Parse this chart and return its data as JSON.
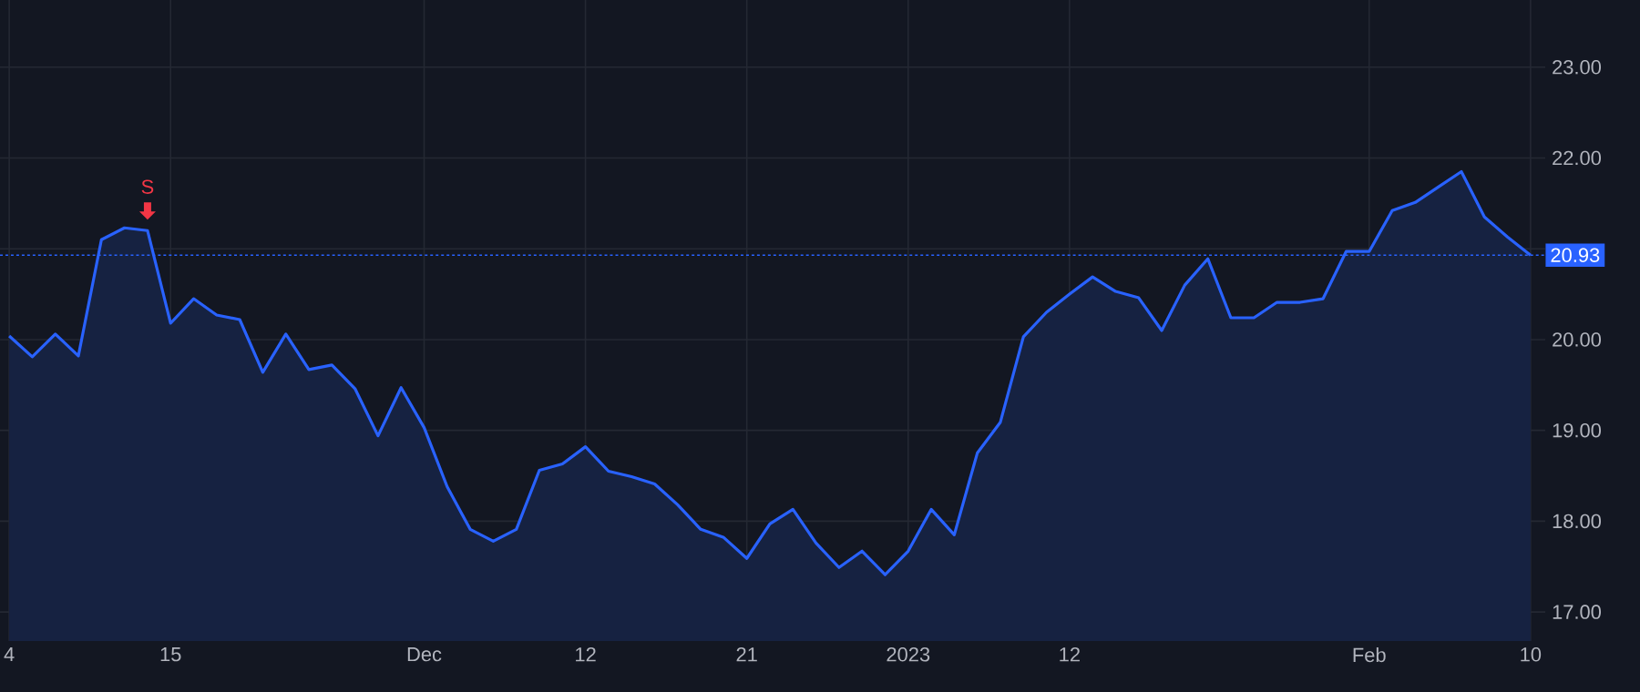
{
  "chart_data": {
    "type": "area",
    "categories": [
      "4",
      null,
      null,
      null,
      null,
      null,
      null,
      "15",
      null,
      null,
      null,
      null,
      null,
      null,
      null,
      null,
      null,
      null,
      "Dec",
      null,
      null,
      null,
      null,
      null,
      null,
      "12",
      null,
      null,
      null,
      null,
      null,
      null,
      "21",
      null,
      null,
      null,
      null,
      null,
      null,
      "2023",
      null,
      null,
      null,
      null,
      null,
      null,
      "12",
      null,
      null,
      null,
      null,
      null,
      null,
      null,
      null,
      null,
      null,
      null,
      null,
      "Feb",
      null,
      null,
      null,
      null,
      null,
      null,
      "10"
    ],
    "series": [
      {
        "color": "#2962ff",
        "values": [
          20.04,
          19.81,
          20.06,
          19.82,
          21.1,
          21.23,
          21.2,
          20.18,
          20.45,
          20.27,
          20.22,
          19.64,
          20.06,
          19.67,
          19.72,
          19.46,
          18.94,
          19.47,
          19.03,
          18.38,
          17.91,
          17.78,
          17.91,
          18.56,
          18.63,
          18.82,
          18.55,
          18.49,
          18.41,
          18.18,
          17.91,
          17.82,
          17.59,
          17.97,
          18.13,
          17.76,
          17.49,
          17.67,
          17.41,
          17.67,
          18.13,
          17.85,
          18.75,
          19.09,
          20.03,
          20.3,
          20.5,
          20.69,
          20.53,
          20.46,
          20.1,
          20.6,
          20.89,
          20.24,
          20.24,
          20.41,
          20.41,
          20.45,
          20.97,
          20.97,
          21.42,
          21.51,
          21.68,
          21.85,
          21.35,
          21.13,
          20.93
        ]
      }
    ],
    "ylim": [
      16.68,
      23.74
    ],
    "yticks": [
      {
        "value": 17,
        "label": "17.00"
      },
      {
        "value": 18,
        "label": "18.00"
      },
      {
        "value": 19,
        "label": "19.00"
      },
      {
        "value": 20,
        "label": "20.00"
      },
      {
        "value": 21,
        "label": null
      },
      {
        "value": 22,
        "label": "22.00"
      },
      {
        "value": 23,
        "label": "23.00"
      }
    ],
    "grid": true,
    "ref_lines": [
      {
        "axis": "y",
        "value": 20.93,
        "label": "20.93",
        "color": "#2962ff",
        "line_style": "dotted"
      }
    ],
    "annotations": [
      {
        "text": "S",
        "y": 21.2
      }
    ]
  }
}
